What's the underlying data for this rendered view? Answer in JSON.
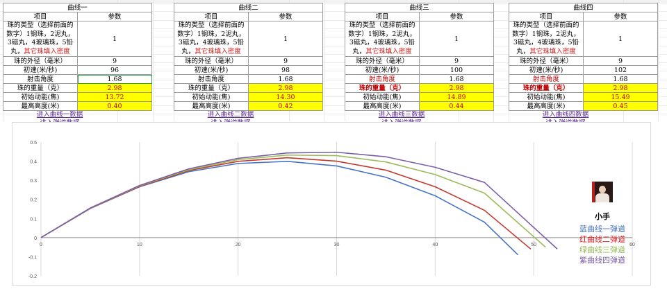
{
  "blocks": [
    {
      "title": "曲线一",
      "header": [
        "项目",
        "参数"
      ],
      "rows": [
        {
          "label": "珠的类型（选择前面的数字）1钢珠，2泥丸，3磁丸，4玻璃珠，5铅丸，",
          "label_red": "其它珠填入密度",
          "value": "1"
        },
        {
          "label": "珠的外径（毫米）",
          "value": "9"
        },
        {
          "label": "初速(米/秒)",
          "value": "96"
        },
        {
          "label": "射击角度",
          "value": "1.68"
        },
        {
          "label": "珠的重量（克）",
          "value": "2.98"
        },
        {
          "label": "初始动能(焦)",
          "value": "13.72"
        },
        {
          "label": "最高高度(米)",
          "value": "0.40"
        }
      ],
      "links": [
        "进入曲线一数据",
        "进入弹道数据"
      ]
    },
    {
      "title": "曲线二",
      "header": [
        "项目",
        "参数"
      ],
      "rows": [
        {
          "label": "珠的类型（选择前面的数字）1钢珠，2泥丸，3磁丸，4玻璃珠，5铅丸，",
          "label_red": "其它珠填入密度",
          "value": "1"
        },
        {
          "label": "珠的外径（毫米）",
          "value": "9"
        },
        {
          "label": "初速(米/秒)",
          "value": "98"
        },
        {
          "label": "射击角度",
          "value": "1.68"
        },
        {
          "label": "珠的重量（克）",
          "value": "2.98"
        },
        {
          "label": "初始动能(焦)",
          "value": "14.30"
        },
        {
          "label": "最高高度(米)",
          "value": "0.42"
        }
      ],
      "links": [
        "进入曲线二数据",
        "进入弹道数据"
      ]
    },
    {
      "title": "曲线三",
      "header": [
        "项目",
        "参数"
      ],
      "rows": [
        {
          "label": "珠的类型（选择前面的数字）1钢珠，2泥丸，3磁丸，4玻璃珠，5铅丸，",
          "label_red": "其它珠填入密度",
          "value": "1"
        },
        {
          "label": "珠的外径（毫米）",
          "value": "9"
        },
        {
          "label": "初速(米/秒)",
          "value": "100"
        },
        {
          "label": "射击角度",
          "value": "1.68"
        },
        {
          "label": "珠的重量（克）",
          "value": "2.98"
        },
        {
          "label": "初始动能(焦)",
          "value": "14.89"
        },
        {
          "label": "最高高度(米)",
          "value": "0.44"
        }
      ],
      "links": [
        "进入曲线三数据",
        "进入弹道数据"
      ]
    },
    {
      "title": "曲线四",
      "header": [
        "项目",
        "参数"
      ],
      "rows": [
        {
          "label": "珠的类型（选择前面的数字）1钢珠，2泥丸，3磁丸，4玻璃珠，5铅丸，",
          "label_red": "其它珠填入密度",
          "value": "1"
        },
        {
          "label": "珠的外径（毫米）",
          "value": "9"
        },
        {
          "label": "初速(米/秒)",
          "value": "102"
        },
        {
          "label": "射击角度",
          "value": "1.68"
        },
        {
          "label": "珠的重量（克）",
          "value": "2.98"
        },
        {
          "label": "初始动能(焦)",
          "value": "15.49"
        },
        {
          "label": "最高高度(米)",
          "value": "0.45"
        }
      ],
      "links": [
        "进入曲线四数据",
        "进入弹道数据"
      ]
    }
  ],
  "chart_data": {
    "type": "line",
    "title": "",
    "xlabel": "",
    "ylabel": "",
    "xlim": [
      0,
      60
    ],
    "ylim": [
      -0.2,
      0.5
    ],
    "xticks": [
      0,
      10,
      20,
      30,
      40,
      50,
      60
    ],
    "yticks": [
      -0.2,
      -0.1,
      0,
      0.1,
      0.2,
      0.3,
      0.4,
      0.5
    ],
    "grid": "vertical",
    "legend_title": "小手",
    "legend_position": "right",
    "series": [
      {
        "name": "蓝曲线一弹道",
        "color": "#4472c4",
        "x": [
          0,
          5,
          10,
          15,
          20,
          25,
          30,
          35,
          40,
          45,
          48.4
        ],
        "y": [
          0,
          0.152,
          0.266,
          0.345,
          0.388,
          0.399,
          0.375,
          0.316,
          0.219,
          0.081,
          -0.09
        ]
      },
      {
        "name": "红曲线二弹道",
        "color": "#c0392b",
        "x": [
          0,
          5,
          10,
          15,
          20,
          25,
          30,
          35,
          40,
          45,
          49.7
        ],
        "y": [
          0,
          0.153,
          0.268,
          0.351,
          0.399,
          0.418,
          0.4,
          0.353,
          0.266,
          0.143,
          -0.06
        ]
      },
      {
        "name": "绿曲线三弹道",
        "color": "#9bbb59",
        "x": [
          0,
          5,
          10,
          15,
          20,
          25,
          30,
          35,
          40,
          45,
          51.2
        ],
        "y": [
          0,
          0.154,
          0.271,
          0.355,
          0.408,
          0.432,
          0.429,
          0.396,
          0.33,
          0.233,
          -0.05
        ]
      },
      {
        "name": "紫曲线四弹道",
        "color": "#7b5ea7",
        "x": [
          0,
          5,
          10,
          15,
          20,
          25,
          30,
          35,
          40,
          45,
          52.4
        ],
        "y": [
          0,
          0.155,
          0.273,
          0.36,
          0.415,
          0.443,
          0.447,
          0.423,
          0.368,
          0.289,
          -0.06
        ]
      }
    ]
  },
  "legend_colors": [
    "#4472c4",
    "#e02020",
    "#9bbb59",
    "#7b5ea7"
  ]
}
